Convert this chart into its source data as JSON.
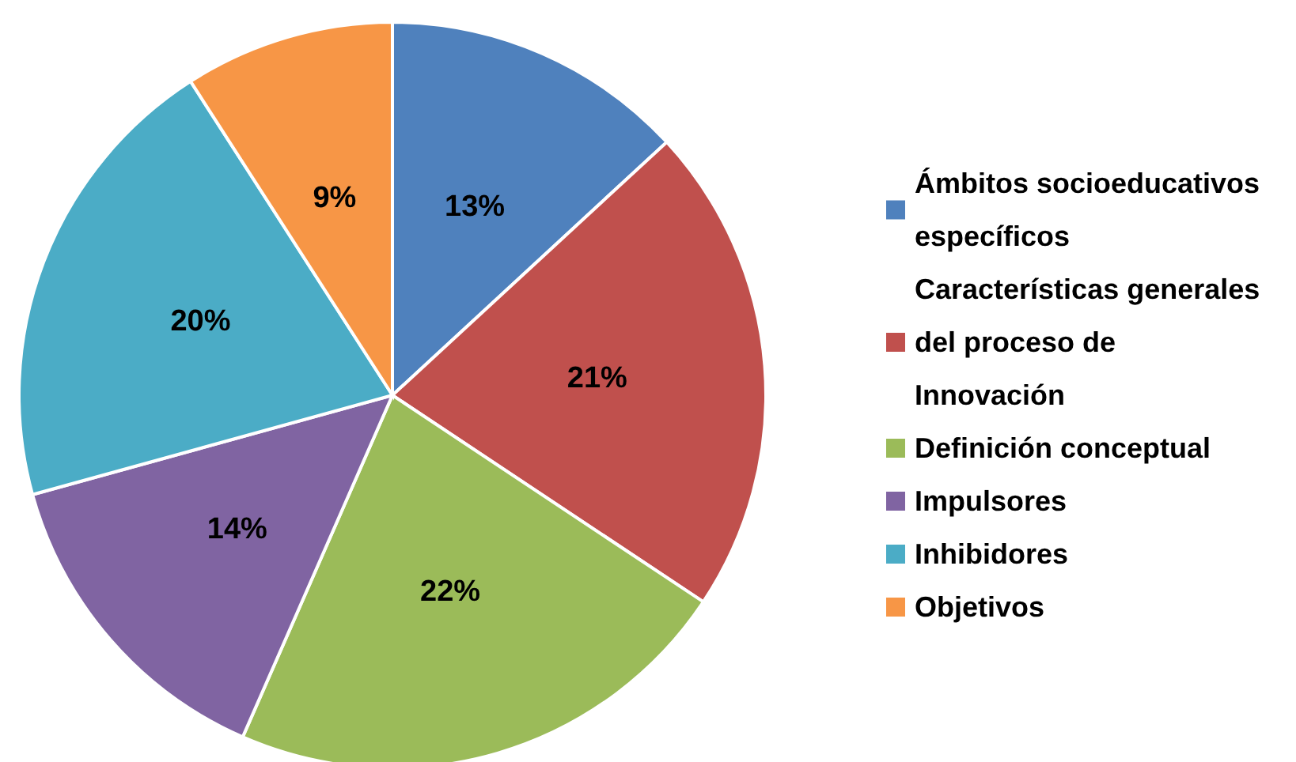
{
  "chart_data": {
    "type": "pie",
    "categories": [
      "Ámbitos socioeducativos específicos",
      "Características generales del proceso de Innovación",
      "Definición conceptual",
      "Impulsores",
      "Inhibidores",
      "Objetivos"
    ],
    "values": [
      13,
      21,
      22,
      14,
      20,
      9
    ],
    "colors": [
      "#4f81bd",
      "#c0504d",
      "#9bbb59",
      "#8064a2",
      "#4bacc6",
      "#f79646"
    ],
    "value_labels": [
      "13%",
      "21%",
      "22%",
      "14%",
      "20%",
      "9%"
    ],
    "legend": "right"
  }
}
